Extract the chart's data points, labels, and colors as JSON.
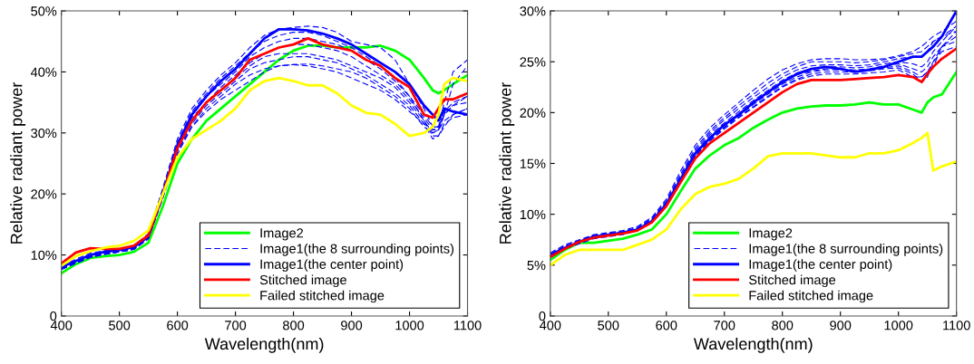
{
  "chart_data": [
    {
      "type": "line",
      "xlabel": "Wavelength(nm)",
      "ylabel": "Relative radiant power",
      "x": [
        400,
        425,
        450,
        475,
        500,
        525,
        550,
        575,
        600,
        625,
        650,
        675,
        700,
        725,
        750,
        775,
        800,
        825,
        850,
        875,
        900,
        925,
        950,
        975,
        1000,
        1025,
        1040,
        1050,
        1060,
        1075,
        1100
      ],
      "xlim": [
        400,
        1100
      ],
      "xticks": [
        400,
        500,
        600,
        700,
        800,
        900,
        1000,
        1100
      ],
      "ylim": [
        0,
        50
      ],
      "yticks": [
        0,
        {
          "value": 10,
          "label": "10%"
        },
        {
          "value": 20,
          "label": "20%"
        },
        {
          "value": 30,
          "label": "30%"
        },
        {
          "value": 40,
          "label": "40%"
        },
        {
          "value": 50,
          "label": "50%"
        }
      ],
      "grid": false,
      "legend": "bottom right",
      "series": [
        {
          "name": "Image2",
          "color": "#00ff00",
          "line_style": "solid",
          "values": [
            7,
            8.5,
            9.5,
            9.8,
            10,
            10.5,
            12,
            18,
            25,
            29,
            32,
            34,
            36,
            38,
            40,
            42,
            43.5,
            44.3,
            44.3,
            44,
            44,
            44,
            44.3,
            43.5,
            42,
            39,
            37,
            36.5,
            37,
            38,
            39.5
          ]
        },
        {
          "name": "Image1(the 8 surrounding points)",
          "color": "#0000ff",
          "line_style": "dashed",
          "values": [
            8.2,
            9.3,
            10.3,
            10.7,
            11,
            11.5,
            13.5,
            21,
            29,
            34,
            37,
            39.5,
            41.5,
            44,
            46,
            47,
            47.3,
            47.5,
            47.3,
            46.5,
            45,
            44.5,
            44,
            42,
            38,
            34,
            31,
            31,
            35,
            40,
            42
          ]
        },
        {
          "color": "#0000ff",
          "line_style": "dashed",
          "values": [
            8,
            9,
            10,
            10.5,
            10.8,
            11.3,
            13.2,
            20.5,
            28.5,
            33.5,
            36.5,
            39,
            41,
            43.2,
            45,
            46,
            46.5,
            46.5,
            46,
            45,
            44,
            42.5,
            41,
            39,
            36,
            32,
            30,
            30.5,
            33,
            38,
            41
          ]
        },
        {
          "color": "#0000ff",
          "line_style": "dashed",
          "values": [
            8,
            9,
            10,
            10.5,
            10.8,
            11.2,
            13,
            20,
            28,
            33,
            36,
            38,
            40,
            42.5,
            44,
            45,
            45.5,
            45.5,
            45,
            44.5,
            43.5,
            42,
            40.5,
            38.5,
            36,
            33,
            31,
            31,
            33.5,
            35,
            36
          ]
        },
        {
          "color": "#0000ff",
          "line_style": "dashed",
          "values": [
            7.8,
            8.8,
            9.8,
            10.3,
            10.7,
            11.1,
            13,
            20,
            27.5,
            32.5,
            35,
            37.5,
            39.5,
            41.5,
            43,
            44,
            44.5,
            44.5,
            44,
            43.5,
            42.5,
            41,
            39.5,
            38,
            35.5,
            32.5,
            30.5,
            30.5,
            33,
            34.5,
            35
          ]
        },
        {
          "color": "#0000ff",
          "line_style": "dashed",
          "values": [
            7.8,
            8.8,
            9.8,
            10.3,
            10.6,
            11,
            12.8,
            19.8,
            27.5,
            32,
            35,
            37,
            39,
            41,
            42.5,
            43,
            43,
            43,
            42.5,
            42,
            41,
            40,
            39,
            37.5,
            35,
            32,
            29.5,
            29.5,
            31,
            33,
            34
          ]
        },
        {
          "color": "#0000ff",
          "line_style": "dashed",
          "values": [
            7.8,
            8.8,
            9.7,
            10.2,
            10.6,
            11,
            12.8,
            19.5,
            27,
            31.5,
            34.5,
            36.5,
            38.5,
            40.5,
            41.5,
            42,
            42.5,
            42.5,
            42,
            41.5,
            40.5,
            39.5,
            38,
            36.5,
            34.5,
            31.5,
            29,
            29.5,
            31.5,
            32.5,
            33
          ]
        },
        {
          "color": "#0000ff",
          "line_style": "dashed",
          "values": [
            7.7,
            8.7,
            9.6,
            10.1,
            10.5,
            10.9,
            12.7,
            19.5,
            27,
            31,
            34,
            36,
            38,
            39.5,
            40.5,
            41,
            41.2,
            41.3,
            41,
            40.5,
            40,
            39,
            37.5,
            36,
            34,
            31,
            30,
            30.5,
            32,
            33,
            34
          ]
        },
        {
          "color": "#0000ff",
          "line_style": "dashed",
          "values": [
            7.6,
            8.6,
            9.6,
            10.1,
            10.5,
            10.9,
            12.6,
            19.3,
            26.5,
            31,
            33.5,
            35.5,
            37,
            38.5,
            40,
            41,
            41.2,
            41,
            40.5,
            40,
            39,
            38,
            37,
            35.5,
            33.5,
            31.5,
            30.5,
            31,
            33,
            34.5,
            36
          ]
        },
        {
          "name": "Image1(the center point)",
          "color": "#0000ff",
          "line_style": "solid",
          "values": [
            8,
            9,
            10,
            10.5,
            10.8,
            11.3,
            13,
            20,
            28,
            33,
            36,
            38.5,
            40.5,
            43,
            45.5,
            47,
            47,
            46.8,
            46.3,
            45.5,
            44.5,
            43,
            41.5,
            40,
            38,
            34.5,
            33,
            32,
            34,
            33.5,
            33
          ]
        },
        {
          "name": "Stitched image",
          "color": "#ff0000",
          "line_style": "solid",
          "values": [
            8.6,
            10.4,
            11.1,
            11,
            11,
            11.5,
            13.2,
            20,
            27.5,
            32,
            35,
            37,
            39,
            42,
            43,
            44,
            44.5,
            45.5,
            44.5,
            44,
            43.5,
            42,
            41,
            39,
            37.5,
            33,
            32.5,
            34,
            35.5,
            35.5,
            36.5
          ]
        },
        {
          "name": "Failed stitched image",
          "color": "#ffff00",
          "line_style": "solid",
          "values": [
            8.2,
            9.8,
            10.6,
            11.2,
            11.5,
            12.3,
            14,
            20,
            26,
            29,
            30.5,
            32,
            34,
            37,
            38.5,
            39,
            38.5,
            37.8,
            37.8,
            36.5,
            34.5,
            33.3,
            33,
            31.5,
            29.5,
            30,
            31,
            33,
            38,
            39,
            38.5
          ]
        }
      ]
    },
    {
      "type": "line",
      "xlabel": "Wavelength(nm)",
      "ylabel": "Relative radiant power",
      "x": [
        400,
        425,
        450,
        475,
        500,
        525,
        550,
        575,
        600,
        625,
        650,
        675,
        700,
        725,
        750,
        775,
        800,
        825,
        850,
        875,
        900,
        925,
        950,
        975,
        1000,
        1025,
        1040,
        1050,
        1060,
        1075,
        1100
      ],
      "xlim": [
        400,
        1100
      ],
      "xticks": [
        400,
        500,
        600,
        700,
        800,
        900,
        1000,
        1100
      ],
      "ylim": [
        0,
        30
      ],
      "yticks": [
        0,
        {
          "value": 5,
          "label": "5%"
        },
        {
          "value": 10,
          "label": "10%"
        },
        {
          "value": 15,
          "label": "15%"
        },
        {
          "value": 20,
          "label": "20%"
        },
        {
          "value": 25,
          "label": "25%"
        },
        {
          "value": 30,
          "label": "30%"
        }
      ],
      "grid": false,
      "legend": "bottom right",
      "series": [
        {
          "name": "Image2",
          "color": "#00ff00",
          "line_style": "solid",
          "values": [
            5.5,
            6.5,
            7.2,
            7.2,
            7.4,
            7.6,
            8,
            8.5,
            10,
            12.3,
            14.5,
            15.8,
            16.8,
            17.5,
            18.5,
            19.3,
            20,
            20.4,
            20.6,
            20.7,
            20.7,
            20.8,
            21,
            20.8,
            20.8,
            20.3,
            20,
            21,
            21.5,
            21.8,
            24
          ]
        },
        {
          "name": "Image1(the 8 surrounding points)",
          "color": "#0000ff",
          "line_style": "dashed",
          "values": [
            6.2,
            7,
            7.5,
            8,
            8.2,
            8.4,
            8.8,
            9.7,
            11.5,
            14.3,
            16.8,
            18.5,
            19.8,
            21,
            22.2,
            23.3,
            24.2,
            24.8,
            25.2,
            25.3,
            25.3,
            25.2,
            25.2,
            25.3,
            25.6,
            26,
            26.5,
            27,
            27.5,
            28,
            29
          ]
        },
        {
          "color": "#0000ff",
          "line_style": "dashed",
          "values": [
            6.1,
            6.9,
            7.4,
            7.9,
            8.1,
            8.3,
            8.7,
            9.6,
            11.3,
            14,
            16.5,
            18.2,
            19.5,
            20.7,
            21.8,
            22.9,
            23.8,
            24.5,
            25,
            25,
            25,
            24.9,
            25,
            25.2,
            25.5,
            25.8,
            26,
            26.5,
            27,
            27.5,
            28.5
          ]
        },
        {
          "color": "#0000ff",
          "line_style": "dashed",
          "values": [
            6,
            6.8,
            7.4,
            7.9,
            8.1,
            8.3,
            8.6,
            9.5,
            11.2,
            13.8,
            16.3,
            18,
            19.3,
            20.4,
            21.5,
            22.5,
            23.5,
            24.2,
            24.6,
            24.7,
            24.7,
            24.6,
            24.7,
            25,
            25.3,
            25.5,
            25.5,
            26,
            27,
            27.5,
            28
          ]
        },
        {
          "color": "#0000ff",
          "line_style": "dashed",
          "values": [
            6,
            6.8,
            7.3,
            7.8,
            8,
            8.2,
            8.6,
            9.4,
            11.1,
            13.6,
            16.1,
            17.8,
            19,
            20.1,
            21.2,
            22.2,
            23.2,
            23.9,
            24.3,
            24.5,
            24.5,
            24.4,
            24.5,
            24.8,
            25,
            24.8,
            24.5,
            25,
            26,
            27,
            28.5
          ]
        },
        {
          "color": "#0000ff",
          "line_style": "dashed",
          "values": [
            5.9,
            6.7,
            7.3,
            7.8,
            8,
            8.2,
            8.5,
            9.4,
            11,
            13.5,
            16,
            17.6,
            18.8,
            19.9,
            21,
            22,
            23,
            23.7,
            24.1,
            24.3,
            24.3,
            24.2,
            24.3,
            24.6,
            24.8,
            24.3,
            24,
            24.5,
            25.5,
            26.5,
            27.5
          ]
        },
        {
          "color": "#0000ff",
          "line_style": "dashed",
          "values": [
            5.9,
            6.7,
            7.2,
            7.7,
            7.9,
            8.1,
            8.5,
            9.3,
            10.9,
            13.4,
            15.8,
            17.4,
            18.6,
            19.7,
            20.8,
            21.8,
            22.8,
            23.5,
            24,
            24.2,
            24.2,
            24.1,
            24.2,
            24.4,
            24.6,
            24,
            23.5,
            24,
            25,
            26.5,
            27
          ]
        },
        {
          "color": "#0000ff",
          "line_style": "dashed",
          "values": [
            5.8,
            6.6,
            7.2,
            7.7,
            7.9,
            8.1,
            8.4,
            9.2,
            10.8,
            13.3,
            15.7,
            17.3,
            18.5,
            19.6,
            20.6,
            21.6,
            22.6,
            23.3,
            23.8,
            24,
            24,
            24,
            24.1,
            24.3,
            24.4,
            23.8,
            23,
            23.5,
            25,
            26,
            26.5
          ]
        },
        {
          "color": "#0000ff",
          "line_style": "dashed",
          "values": [
            5.8,
            6.6,
            7.1,
            7.6,
            7.8,
            8,
            8.4,
            9.2,
            10.8,
            13.2,
            15.6,
            17.2,
            18.4,
            19.5,
            20.5,
            21.5,
            22.5,
            23.2,
            23.6,
            23.8,
            23.8,
            23.8,
            23.9,
            24,
            24.2,
            23.5,
            23.5,
            24,
            24.5,
            26.5,
            28
          ]
        },
        {
          "name": "Image1(the center point)",
          "color": "#0000ff",
          "line_style": "solid",
          "values": [
            6,
            6.7,
            7.3,
            7.8,
            8,
            8.2,
            8.5,
            9.3,
            11,
            13.5,
            16,
            17.5,
            18.8,
            19.8,
            21,
            22,
            23,
            23.8,
            24.3,
            24.5,
            24.3,
            24,
            24.2,
            24.5,
            25,
            25.5,
            25.5,
            26,
            26.5,
            27.5,
            30
          ]
        },
        {
          "name": "Stitched image",
          "color": "#ff0000",
          "line_style": "solid",
          "values": [
            5.8,
            6.6,
            7.3,
            7.7,
            7.9,
            8.1,
            8.4,
            9.2,
            10.8,
            13.2,
            15.5,
            17,
            18,
            19,
            20,
            21,
            22,
            22.8,
            23.2,
            23.2,
            23.2,
            23.3,
            23.4,
            23.5,
            23.7,
            23.5,
            23,
            23.8,
            24.5,
            25.3,
            26.3
          ]
        },
        {
          "name": "Failed stitched image",
          "color": "#ffff00",
          "line_style": "solid",
          "values": [
            5,
            6,
            6.5,
            6.5,
            6.5,
            6.5,
            7,
            7.5,
            8.5,
            10.5,
            12,
            12.7,
            13,
            13.5,
            14.5,
            15.7,
            16,
            16,
            16,
            15.8,
            15.6,
            15.6,
            16,
            16,
            16.3,
            17,
            17.5,
            18,
            14.3,
            14.7,
            15.2
          ]
        }
      ]
    }
  ]
}
